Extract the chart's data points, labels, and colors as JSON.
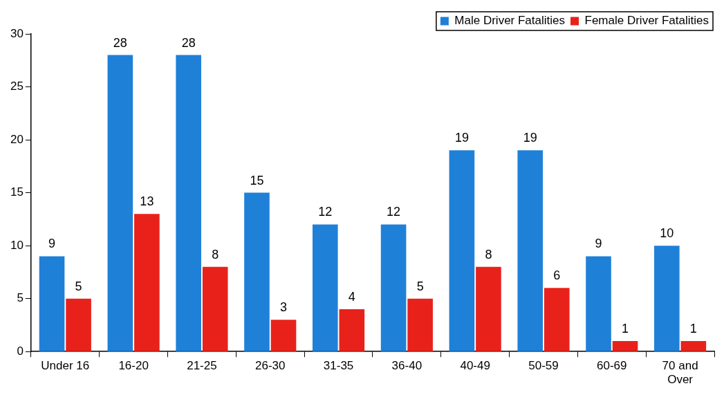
{
  "chart_data": {
    "type": "bar",
    "categories": [
      "Under 16",
      "16-20",
      "21-25",
      "26-30",
      "31-35",
      "36-40",
      "40-49",
      "50-59",
      "60-69",
      "70 and Over"
    ],
    "series": [
      {
        "name": "Male Driver Fatalities",
        "color": "#1f80d8",
        "values": [
          9,
          28,
          28,
          15,
          12,
          12,
          19,
          19,
          9,
          10
        ]
      },
      {
        "name": "Female Driver Fatalities",
        "color": "#e8221b",
        "values": [
          5,
          13,
          8,
          3,
          4,
          5,
          8,
          6,
          1,
          1
        ]
      }
    ],
    "ylim": [
      0,
      30
    ],
    "yticks": [
      0,
      5,
      10,
      15,
      20,
      25,
      30
    ],
    "grid": false,
    "legend": "top right",
    "data_labels": true
  }
}
